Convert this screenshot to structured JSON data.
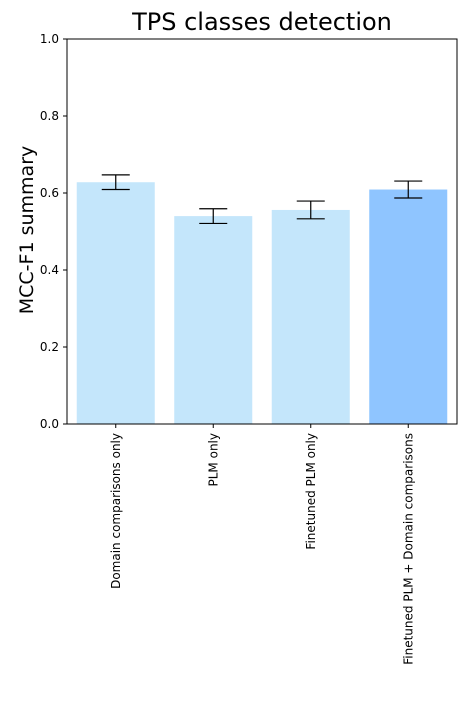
{
  "chart_data": {
    "type": "bar",
    "title": "TPS classes detection",
    "xlabel": "",
    "ylabel": "MCC-F1 summary",
    "ylim": [
      0,
      1.0
    ],
    "yticks": [
      "0.0",
      "0.2",
      "0.4",
      "0.6",
      "0.8",
      "1.0"
    ],
    "categories": [
      "Domain comparisons only",
      "PLM only",
      "Finetuned PLM only",
      "Finetuned PLM + Domain comparisons"
    ],
    "values": [
      0.628,
      0.54,
      0.556,
      0.609
    ],
    "error_low": [
      0.609,
      0.521,
      0.533,
      0.587
    ],
    "error_high": [
      0.647,
      0.559,
      0.579,
      0.631
    ],
    "colors": [
      "#c4e6fb",
      "#c4e6fb",
      "#c4e6fb",
      "#8fc5ff"
    ],
    "grid": false,
    "legend": "none"
  }
}
